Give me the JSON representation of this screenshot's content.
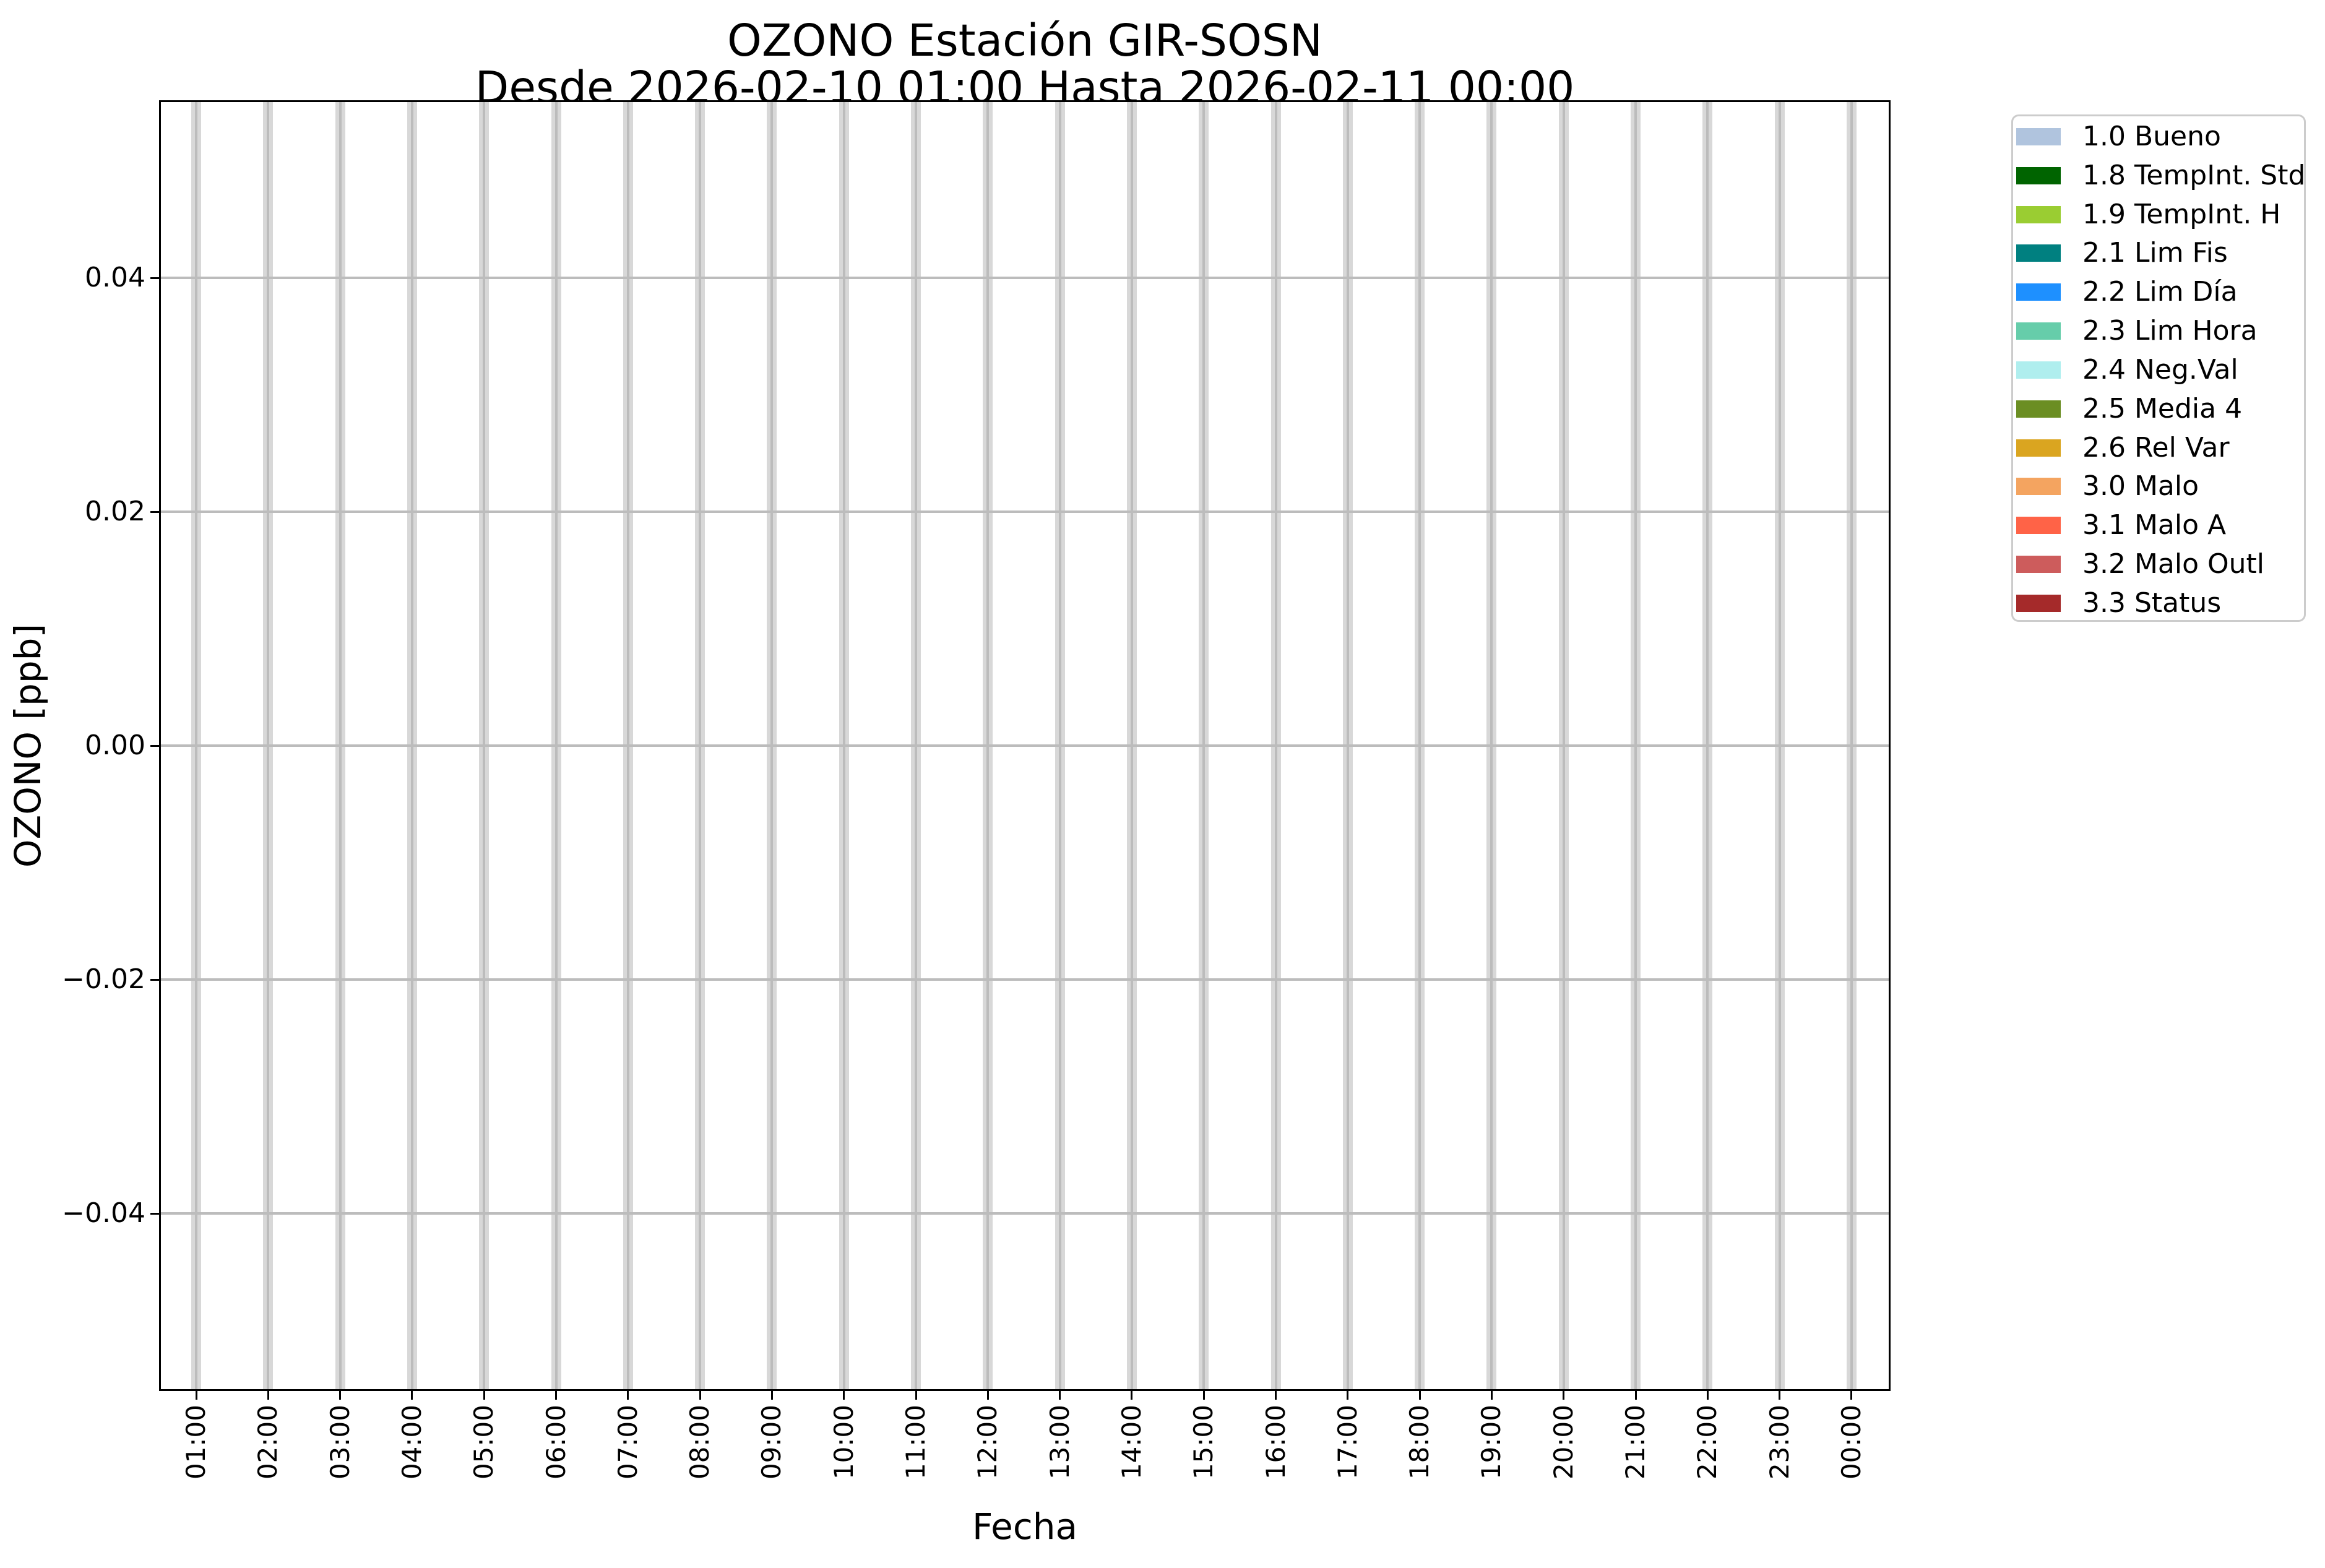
{
  "title": {
    "line1": "OZONO Estación GIR-SOSN",
    "line2": "Desde 2026-02-10 01:00 Hasta 2026-02-11 00:00"
  },
  "axes": {
    "xlabel": "Fecha",
    "ylabel": "OZONO [ppb]",
    "y_tick_labels": [
      "0.04",
      "0.02",
      "0.00",
      "−0.02",
      "−0.04"
    ]
  },
  "chart_data": {
    "type": "bar",
    "title": "OZONO Estación GIR-SOSN",
    "subtitle": "Desde 2026-02-10 01:00 Hasta 2026-02-11 00:00",
    "xlabel": "Fecha",
    "ylabel": "OZONO [ppb]",
    "categories": [
      "01:00",
      "02:00",
      "03:00",
      "04:00",
      "05:00",
      "06:00",
      "07:00",
      "08:00",
      "09:00",
      "10:00",
      "11:00",
      "12:00",
      "13:00",
      "14:00",
      "15:00",
      "16:00",
      "17:00",
      "18:00",
      "19:00",
      "20:00",
      "21:00",
      "22:00",
      "23:00",
      "00:00"
    ],
    "series": [
      {
        "name": "1.0 Bueno",
        "color": "#B0C4DE",
        "values": []
      },
      {
        "name": "1.8 TempInt. Std",
        "color": "#006400",
        "values": []
      },
      {
        "name": "1.9 TempInt. H",
        "color": "#9ACD32",
        "values": []
      },
      {
        "name": "2.1 Lim Fis",
        "color": "#008080",
        "values": []
      },
      {
        "name": "2.2 Lim Día",
        "color": "#1E90FF",
        "values": []
      },
      {
        "name": "2.3 Lim Hora",
        "color": "#66CDAA",
        "values": []
      },
      {
        "name": "2.4 Neg.Val",
        "color": "#AFEEEE",
        "values": []
      },
      {
        "name": "2.5 Media 4",
        "color": "#6B8E23",
        "values": []
      },
      {
        "name": "2.6 Rel Var",
        "color": "#DAA520",
        "values": []
      },
      {
        "name": "3.0 Malo",
        "color": "#F4A460",
        "values": []
      },
      {
        "name": "3.1 Malo A",
        "color": "#FF6347",
        "values": []
      },
      {
        "name": "3.2 Malo Outl",
        "color": "#CD5C5C",
        "values": []
      },
      {
        "name": "3.3 Status",
        "color": "#A52A2A",
        "values": []
      }
    ],
    "y_ticks": [
      0.04,
      0.02,
      0.0,
      -0.02,
      -0.04
    ],
    "ylim": [
      -0.055,
      0.055
    ],
    "grid": true,
    "legend_position": "outside-right",
    "note": "Plot area contains no data bars; only hourly grid bands are visible."
  },
  "colors": {
    "grid_line": "#bcbcbc",
    "grid_band": "#d8d8d8",
    "spine": "#000000",
    "legend_border": "#cccccc",
    "background": "#ffffff"
  }
}
